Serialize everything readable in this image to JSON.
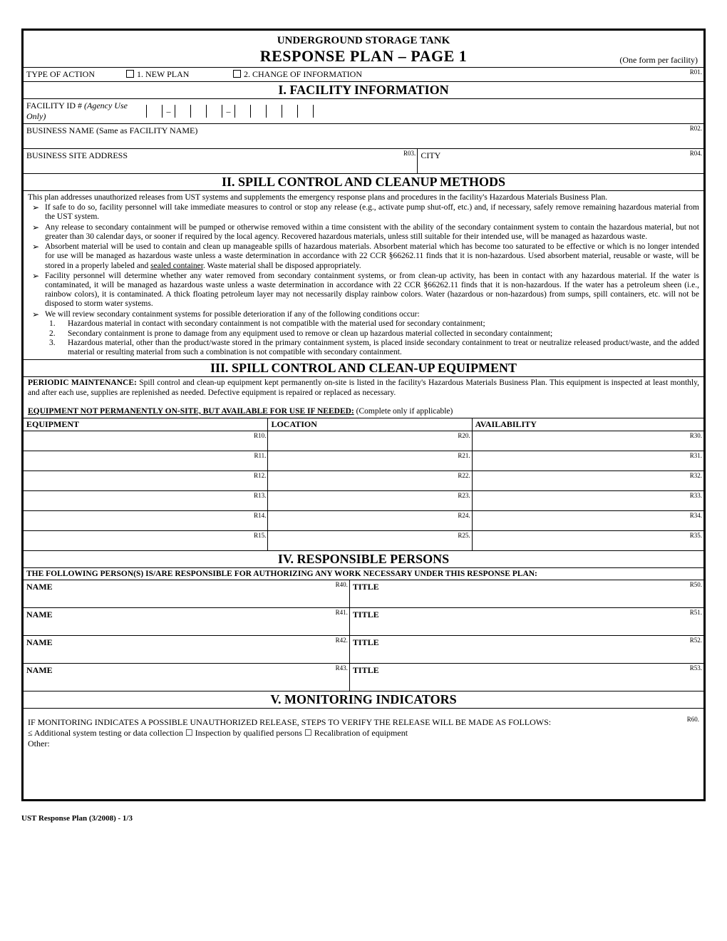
{
  "header": {
    "line1": "UNDERGROUND STORAGE TANK",
    "line2": "RESPONSE PLAN – PAGE 1",
    "sub": "(One form per facility)"
  },
  "typeAction": {
    "label": "TYPE OF ACTION",
    "opt1": "1. NEW PLAN",
    "opt2": "2. CHANGE OF INFORMATION",
    "ref": "R01."
  },
  "sec1": {
    "title": "I.  FACILITY INFORMATION",
    "facId": {
      "label": "FACILITY ID #  ",
      "agency": "(Agency Use Only)"
    },
    "bizName": {
      "label": "BUSINESS NAME (Same as FACILITY NAME)",
      "ref": "R02."
    },
    "addr": {
      "label": "BUSINESS SITE ADDRESS",
      "ref": "R03."
    },
    "city": {
      "label": "CITY",
      "ref": "R04."
    }
  },
  "sec2": {
    "title": "II.  SPILL CONTROL AND CLEANUP METHODS",
    "intro": "This plan addresses unauthorized releases from UST systems and supplements the emergency response plans and procedures in the facility's Hazardous Materials Business Plan.",
    "b1": "If safe to do so, facility personnel will take immediate measures to control or stop any release (e.g., activate pump shut-off, etc.) and, if necessary, safely remove remaining hazardous material from the UST system.",
    "b2": "Any release to secondary containment will be pumped or otherwise removed within a time consistent with the ability of the secondary containment system to contain the hazardous material, but not greater than 30 calendar days, or sooner if required by the local agency.  Recovered hazardous materials, unless still suitable for their intended use, will be managed as hazardous waste.",
    "b3a": "Absorbent material will be used to contain and clean up manageable spills of hazardous materials.  Absorbent material which has become too saturated to be effective or which is no longer intended for use will be managed as hazardous waste unless a waste determination in accordance with 22 CCR §66262.11 finds that it is non-hazardous.  Used absorbent material, reusable or waste, will be stored in a properly labeled and ",
    "b3sealed": "sealed container",
    "b3b": ". Waste material shall be disposed appropriately.",
    "b4": "Facility personnel will determine whether any water removed from secondary containment systems, or from clean-up activity, has been in contact with any hazardous material. If the water is contaminated, it will be managed as hazardous waste unless a waste determination in accordance with 22 CCR §66262.11 finds that it is non-hazardous.  If the water has a petroleum sheen (i.e., rainbow colors), it is contaminated.  A thick floating petroleum layer may not necessarily display rainbow colors.  Water (hazardous or non-hazardous) from sumps, spill containers, etc. will not be disposed to storm water systems.",
    "b5": "We will review secondary containment systems for possible deterioration if any of the following conditions occur:",
    "n1": "Hazardous material in contact with secondary containment is not compatible with the material used for secondary containment;",
    "n2": "Secondary containment is prone to damage from any equipment used to remove or clean up hazardous material collected in secondary containment;",
    "n3": "Hazardous material, other than the product/waste stored in the primary containment system, is placed inside secondary containment to treat or neutralize released product/waste, and the added material or resulting material from such a combination is not compatible with secondary containment."
  },
  "sec3": {
    "title": "III.  SPILL CONTROL AND CLEAN-UP EQUIPMENT",
    "introLabel": "PERIODIC MAINTENANCE:",
    "intro": " Spill control and clean-up equipment kept permanently on-site is listed in the facility's Hazardous Materials Business Plan.  This equipment is inspected at least monthly, and after each use, supplies are replenished as needed.  Defective equipment is repaired or replaced as necessary.",
    "eqNotLabel": "EQUIPMENT NOT PERMANENTLY ON-SITE, BUT AVAILABLE FOR USE IF NEEDED:",
    "eqNotSub": "  (Complete only if applicable)",
    "headers": {
      "c1": "EQUIPMENT",
      "c2": "LOCATION",
      "c3": "AVAILABILITY"
    },
    "rows": [
      {
        "r1": "R10.",
        "r2": "R20.",
        "r3": "R30."
      },
      {
        "r1": "R11.",
        "r2": "R21.",
        "r3": "R31."
      },
      {
        "r1": "R12.",
        "r2": "R22.",
        "r3": "R32."
      },
      {
        "r1": "R13.",
        "r2": "R23.",
        "r3": "R33."
      },
      {
        "r1": "R14.",
        "r2": "R24.",
        "r3": "R34."
      },
      {
        "r1": "R15.",
        "r2": "R25.",
        "r3": "R35."
      }
    ]
  },
  "sec4": {
    "title": "IV.  RESPONSIBLE PERSONS",
    "head": "THE FOLLOWING PERSON(S) IS/ARE RESPONSIBLE FOR AUTHORIZING ANY WORK NECESSARY UNDER THIS RESPONSE PLAN:",
    "rows": [
      {
        "name": "NAME",
        "nref": "R40.",
        "title": "TITLE",
        "tref": "R50."
      },
      {
        "name": "NAME",
        "nref": "R41.",
        "title": "TITLE",
        "tref": "R51."
      },
      {
        "name": "NAME",
        "nref": "R42.",
        "title": "TITLE",
        "tref": "R52."
      },
      {
        "name": "NAME",
        "nref": "R43.",
        "title": "TITLE",
        "tref": "R53."
      }
    ]
  },
  "sec5": {
    "title": "V.   MONITORING INDICATORS",
    "line1": "IF MONITORING INDICATES A POSSIBLE UNAUTHORIZED RELEASE, STEPS TO VERIFY THE RELEASE WILL BE MADE AS FOLLOWS:",
    "ref": "R60.",
    "opt1": " Additional system testing or data collection    ",
    "opt2": " Inspection by qualified persons    ",
    "opt3": " Recalibration of equipment",
    "other": "Other:"
  },
  "footer": "UST Response Plan (3/2008) - 1/3"
}
